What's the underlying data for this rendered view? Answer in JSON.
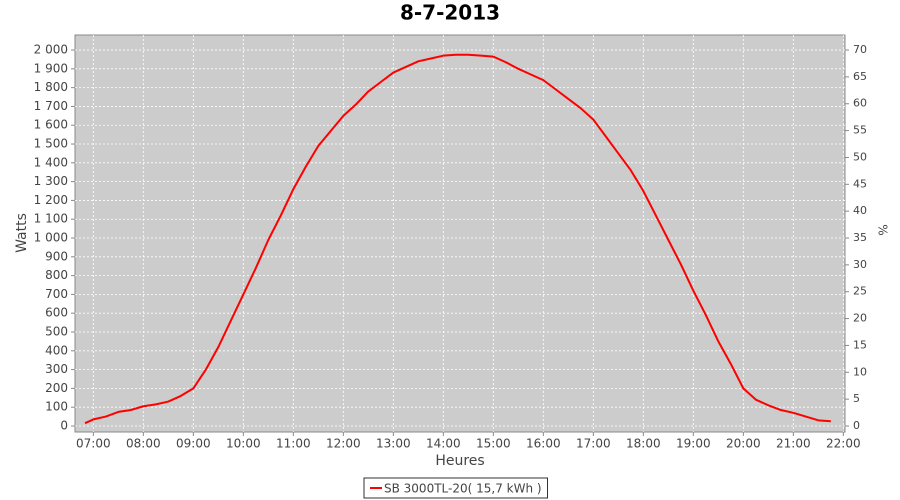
{
  "chart_data": {
    "type": "line",
    "title": "8-7-2013",
    "x_label": "Heures",
    "y_label": "Watts",
    "y2_label": "%",
    "x": [
      "06:50",
      "07:00",
      "07:15",
      "07:30",
      "07:45",
      "08:00",
      "08:15",
      "08:30",
      "08:45",
      "09:00",
      "09:15",
      "09:30",
      "09:45",
      "10:00",
      "10:15",
      "10:30",
      "10:45",
      "11:00",
      "11:15",
      "11:30",
      "11:45",
      "12:00",
      "12:15",
      "12:30",
      "12:45",
      "13:00",
      "13:15",
      "13:30",
      "13:45",
      "14:00",
      "14:15",
      "14:30",
      "14:45",
      "15:00",
      "15:15",
      "15:30",
      "15:45",
      "16:00",
      "16:15",
      "16:30",
      "16:45",
      "17:00",
      "17:15",
      "17:30",
      "17:45",
      "18:00",
      "18:15",
      "18:30",
      "18:45",
      "19:00",
      "19:15",
      "19:30",
      "19:45",
      "20:00",
      "20:15",
      "20:30",
      "20:45",
      "21:00",
      "21:15",
      "21:30",
      "21:45"
    ],
    "series": [
      {
        "name": "SB 3000TL-20( 15,7 kWh )",
        "color": "#ff0000",
        "values": [
          15,
          35,
          50,
          75,
          85,
          105,
          115,
          130,
          160,
          200,
          300,
          420,
          560,
          700,
          840,
          990,
          1120,
          1260,
          1380,
          1490,
          1570,
          1650,
          1710,
          1780,
          1830,
          1880,
          1910,
          1940,
          1955,
          1970,
          1975,
          1975,
          1970,
          1965,
          1935,
          1900,
          1870,
          1840,
          1790,
          1740,
          1690,
          1630,
          1540,
          1450,
          1360,
          1250,
          1120,
          990,
          860,
          720,
          590,
          450,
          330,
          200,
          140,
          110,
          85,
          70,
          50,
          30,
          25
        ]
      }
    ],
    "xlim": [
      "06:38",
      "22:02"
    ],
    "xticks": [
      "07:00",
      "08:00",
      "09:00",
      "10:00",
      "11:00",
      "12:00",
      "13:00",
      "14:00",
      "15:00",
      "16:00",
      "17:00",
      "18:00",
      "19:00",
      "20:00",
      "21:00",
      "22:00"
    ],
    "ylim": [
      -32,
      2080
    ],
    "yticks": [
      0,
      100,
      200,
      300,
      400,
      500,
      600,
      700,
      800,
      900,
      {
        "value": 1000,
        "label": "1 000"
      },
      {
        "value": 1100,
        "label": "1 100"
      },
      {
        "value": 1200,
        "label": "1 200"
      },
      {
        "value": 1300,
        "label": "1 300"
      },
      {
        "value": 1400,
        "label": "1 400"
      },
      {
        "value": 1500,
        "label": "1 500"
      },
      {
        "value": 1600,
        "label": "1 600"
      },
      {
        "value": 1700,
        "label": "1 700"
      },
      {
        "value": 1800,
        "label": "1 800"
      },
      {
        "value": 1900,
        "label": "1 900"
      },
      {
        "value": 2000,
        "label": "2 000"
      }
    ],
    "y2lim": [
      -1.12,
      72.8
    ],
    "y2ticks": [
      0,
      5,
      10,
      15,
      20,
      25,
      30,
      35,
      40,
      45,
      50,
      55,
      60,
      65,
      70
    ],
    "grid": true,
    "legend": "bottom",
    "plot_background": "#cccccc"
  }
}
